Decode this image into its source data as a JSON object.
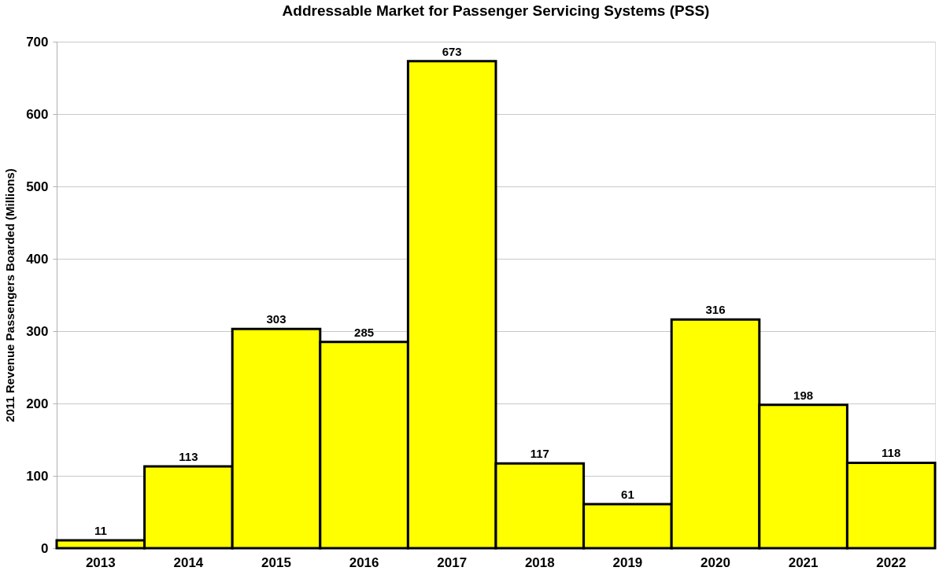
{
  "chart_data": {
    "type": "bar",
    "title": "Addressable Market for Passenger Servicing Systems (PSS)",
    "ylabel": "2011 Revenue Passengers Boarded (Millions)",
    "categories": [
      "2013",
      "2014",
      "2015",
      "2016",
      "2017",
      "2018",
      "2019",
      "2020",
      "2021",
      "2022"
    ],
    "values": [
      11,
      113,
      303,
      285,
      673,
      117,
      61,
      316,
      198,
      118
    ],
    "color": "#ffff00",
    "ylim": [
      0,
      700
    ],
    "yticks": [
      0,
      100,
      200,
      300,
      400,
      500,
      600,
      700
    ],
    "grid": "y",
    "data_labels": true
  }
}
